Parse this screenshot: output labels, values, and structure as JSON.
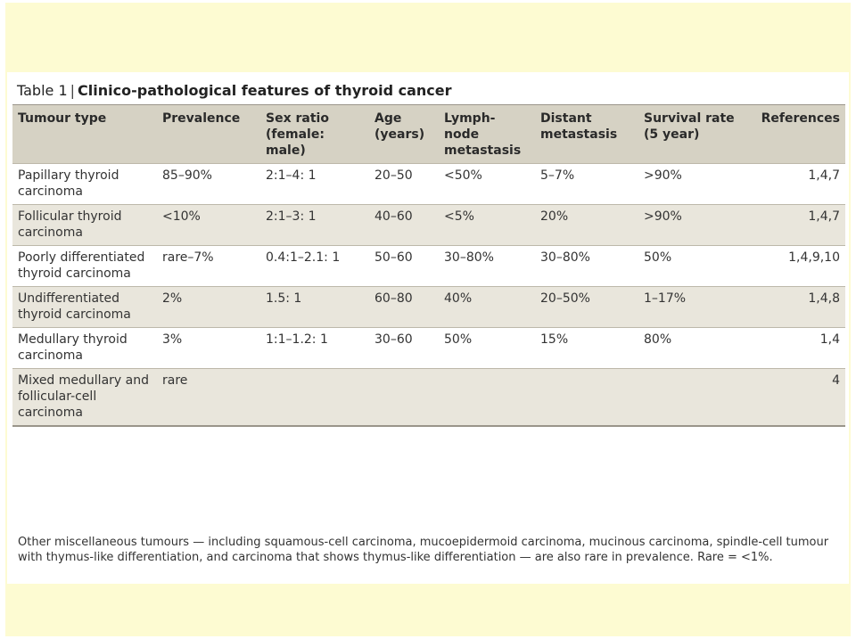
{
  "table": {
    "label": "Table 1",
    "separator": "|",
    "title": "Clinico-pathological features of thyroid cancer",
    "headers": [
      "Tumour type",
      "Prevalence",
      "Sex ratio (female: male)",
      "Age (years)",
      "Lymph-node metastasis",
      "Distant metastasis",
      "Survival rate (5 year)",
      "References"
    ],
    "rows": [
      [
        "Papillary thyroid carcinoma",
        "85–90%",
        "2:1–4: 1",
        "20–50",
        "<50%",
        "5–7%",
        ">90%",
        "1,4,7"
      ],
      [
        "Follicular thyroid carcinoma",
        "<10%",
        "2:1–3: 1",
        "40–60",
        "<5%",
        "20%",
        ">90%",
        "1,4,7"
      ],
      [
        "Poorly differentiated thyroid carcinoma",
        "rare–7%",
        "0.4:1–2.1: 1",
        "50–60",
        "30–80%",
        "30–80%",
        "50%",
        "1,4,9,10"
      ],
      [
        "Undifferentiated thyroid carcinoma",
        "2%",
        "1.5: 1",
        "60–80",
        "40%",
        "20–50%",
        "1–17%",
        "1,4,8"
      ],
      [
        "Medullary thyroid carcinoma",
        "3%",
        "1:1–1.2: 1",
        "30–60",
        "50%",
        "15%",
        "80%",
        "1,4"
      ],
      [
        "Mixed medullary and follicular-cell carcinoma",
        "rare",
        "",
        "",
        "",
        "",
        "",
        "4"
      ]
    ],
    "footnote": "Other miscellaneous tumours — including squamous-cell carcinoma, mucoepidermoid carcinoma, mucinous carcinoma, spindle-cell tumour with thymus-like differentiation, and carcinoma that shows thymus-like differentiation — are also rare in prevalence. Rare = <1%."
  },
  "colors": {
    "slide_background": "#fdfbd2",
    "header_background": "#d6d2c4",
    "row_shade": "#e9e6dc"
  }
}
